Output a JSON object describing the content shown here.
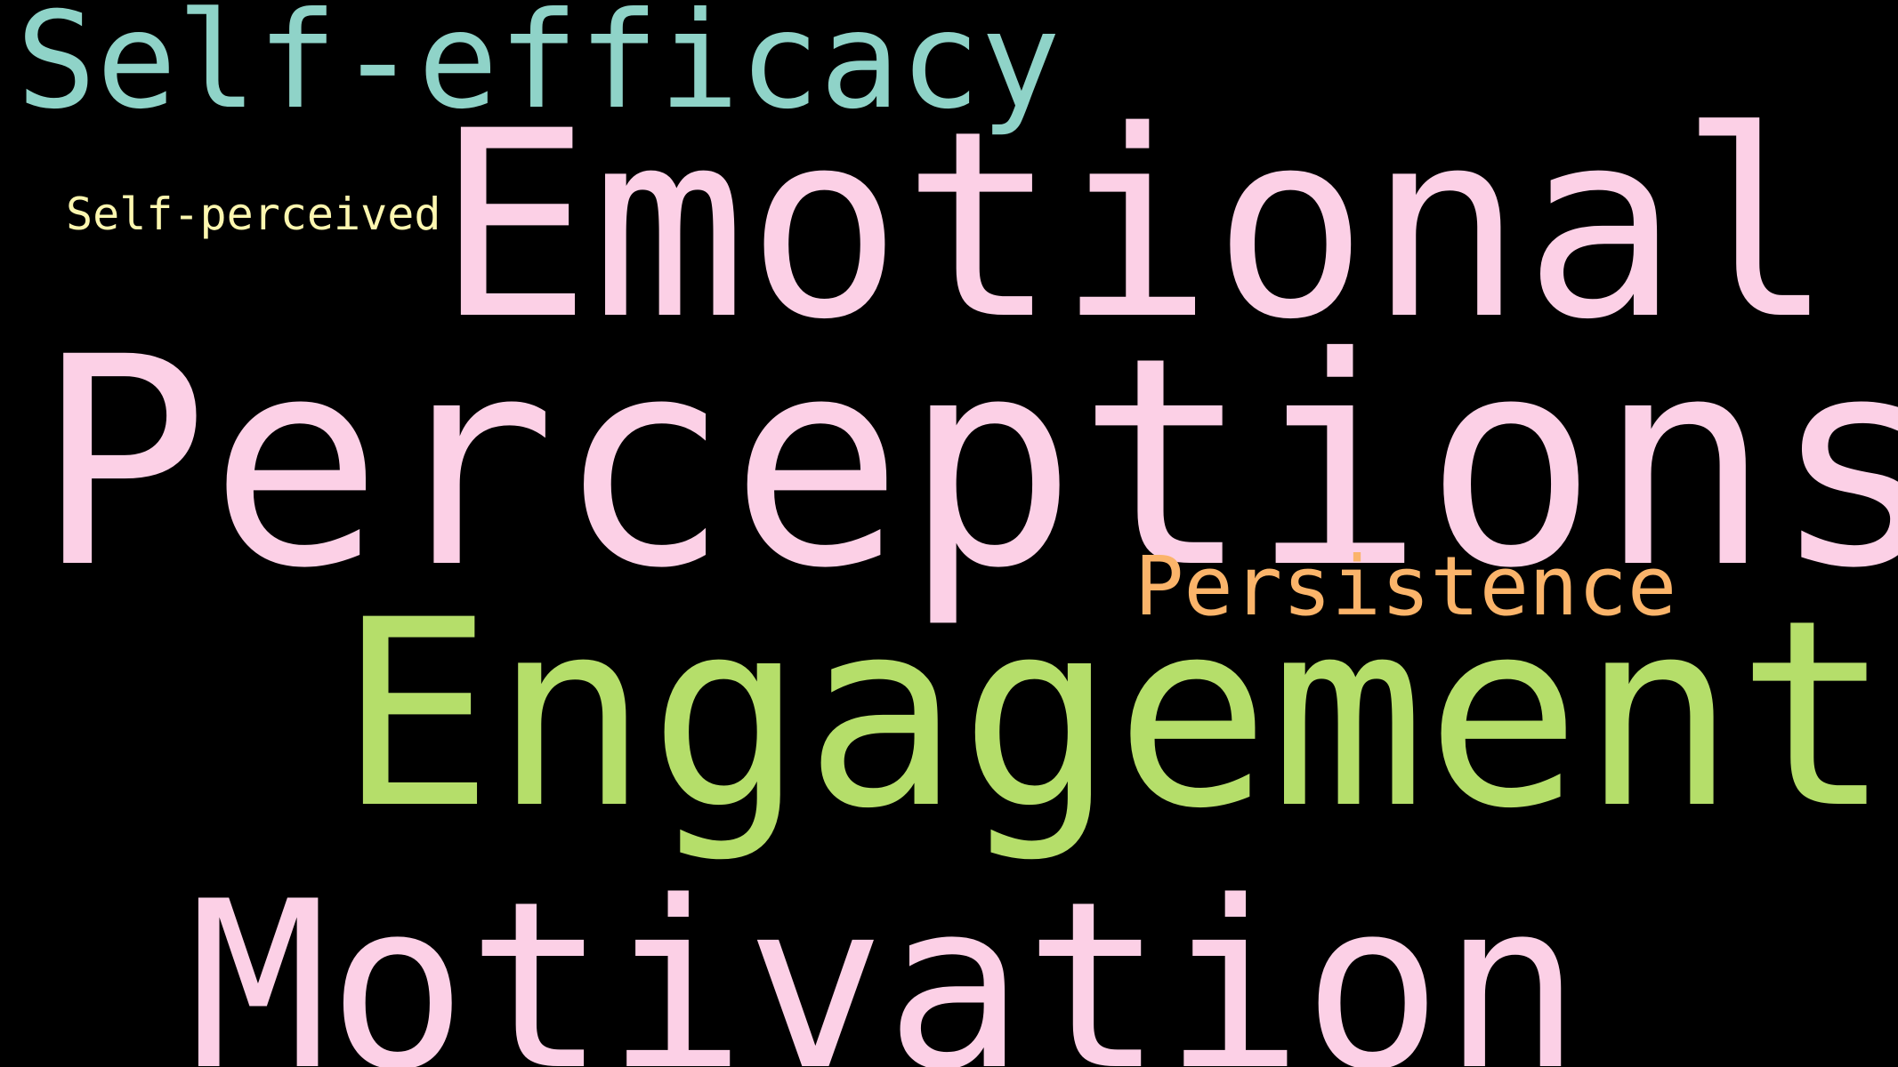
{
  "background": "#000000",
  "words": {
    "self_efficacy": {
      "text": "Self-efficacy",
      "color": "#8fd3c8"
    },
    "emotional": {
      "text": "Emotional",
      "color": "#fcd0e6"
    },
    "self_perceived": {
      "text": "Self-perceived",
      "color": "#fdf7b0"
    },
    "perceptions": {
      "text": "Perceptions",
      "color": "#fcd0e6"
    },
    "persistence": {
      "text": "Persistence",
      "color": "#fbb46a"
    },
    "engagement": {
      "text": "Engagement",
      "color": "#b5de6a"
    },
    "motivation": {
      "text": "Motivation",
      "color": "#fcd0e6"
    }
  }
}
